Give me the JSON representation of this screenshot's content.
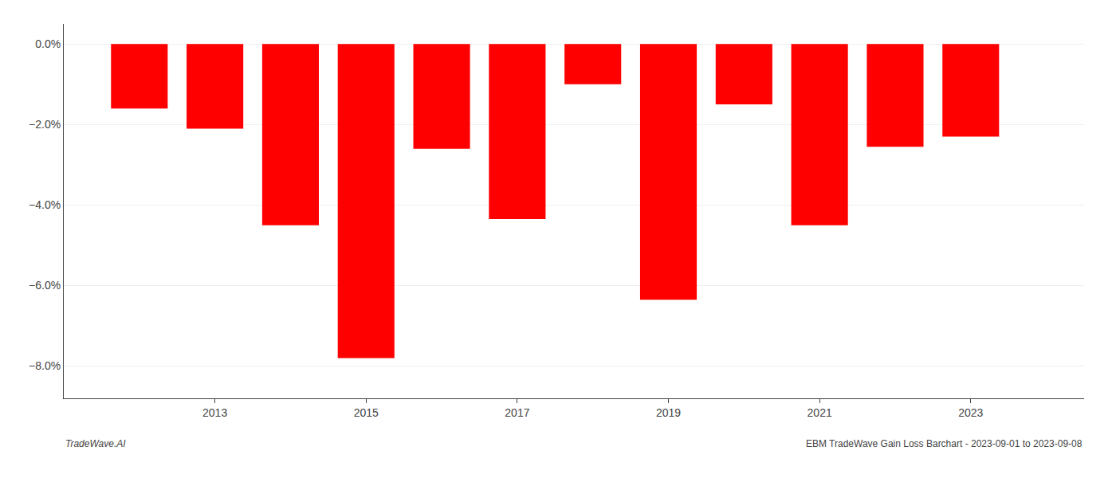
{
  "chart_data": {
    "type": "bar",
    "x": [
      2012,
      2013,
      2014,
      2015,
      2016,
      2017,
      2018,
      2019,
      2020,
      2021,
      2022,
      2023
    ],
    "values": [
      -1.6,
      -2.1,
      -4.5,
      -7.8,
      -2.6,
      -4.35,
      -1.0,
      -6.35,
      -1.5,
      -4.5,
      -2.55,
      -2.3
    ],
    "color": "#ff0000",
    "xlim": [
      2011.0,
      2024.5
    ],
    "xticks": [
      2013,
      2015,
      2017,
      2019,
      2021,
      2023
    ],
    "ylim": [
      -8.8,
      0.5
    ],
    "yticks": [
      {
        "value": 0.0,
        "label": "0.0%"
      },
      {
        "value": -2.0,
        "label": "−2.0%"
      },
      {
        "value": -4.0,
        "label": "−4.0%"
      },
      {
        "value": -6.0,
        "label": "−6.0%"
      },
      {
        "value": -8.0,
        "label": "−8.0%"
      }
    ],
    "grid": "y",
    "annotations": [
      "TradeWave.AI",
      "EBM TradeWave Gain Loss Barchart - 2023-09-01 to 2023-09-08"
    ]
  }
}
